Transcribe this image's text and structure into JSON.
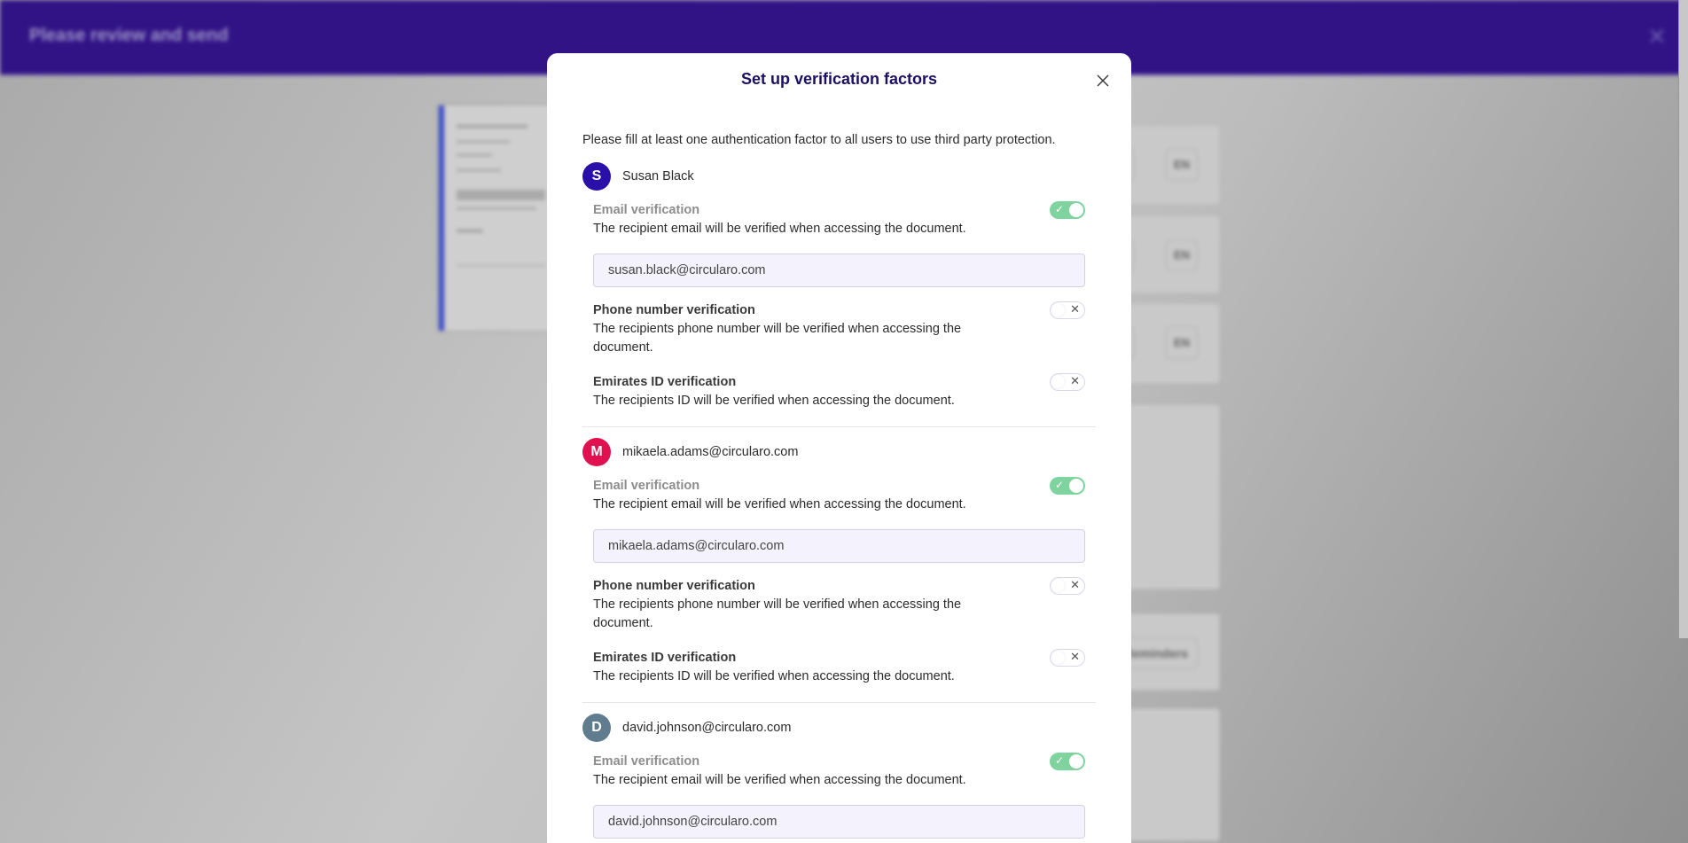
{
  "background": {
    "title": "Please review and send",
    "lang_label": "EN",
    "reminders_label": "Reminders"
  },
  "modal": {
    "title": "Set up verification factors",
    "intro": "Please fill at least one authentication factor to all users to use third party protection.",
    "users": [
      {
        "initial": "S",
        "name": "Susan Black",
        "color": "#2a0fa8",
        "email_on": true,
        "phone_on": false,
        "eid_on": false,
        "email_value": "susan.black@circularo.com"
      },
      {
        "initial": "M",
        "name": "mikaela.adams@circularo.com",
        "color": "#e0114f",
        "email_on": true,
        "phone_on": false,
        "eid_on": false,
        "email_value": "mikaela.adams@circularo.com"
      },
      {
        "initial": "D",
        "name": "david.johnson@circularo.com",
        "color": "#5f7d8e",
        "email_on": true,
        "phone_on": false,
        "eid_on": false,
        "email_value": "david.johnson@circularo.com"
      }
    ],
    "factors": {
      "email_label": "Email verification",
      "email_desc": "The recipient email will be verified when accessing the document.",
      "phone_label": "Phone number verification",
      "phone_desc": "The recipients phone number will be verified when accessing the document.",
      "eid_label": "Emirates ID verification",
      "eid_desc": "The recipients ID will be verified when accessing the document."
    },
    "colors": {
      "toggle_on": "#7fd39e",
      "header": "#311386",
      "title": "#1b1064"
    }
  }
}
